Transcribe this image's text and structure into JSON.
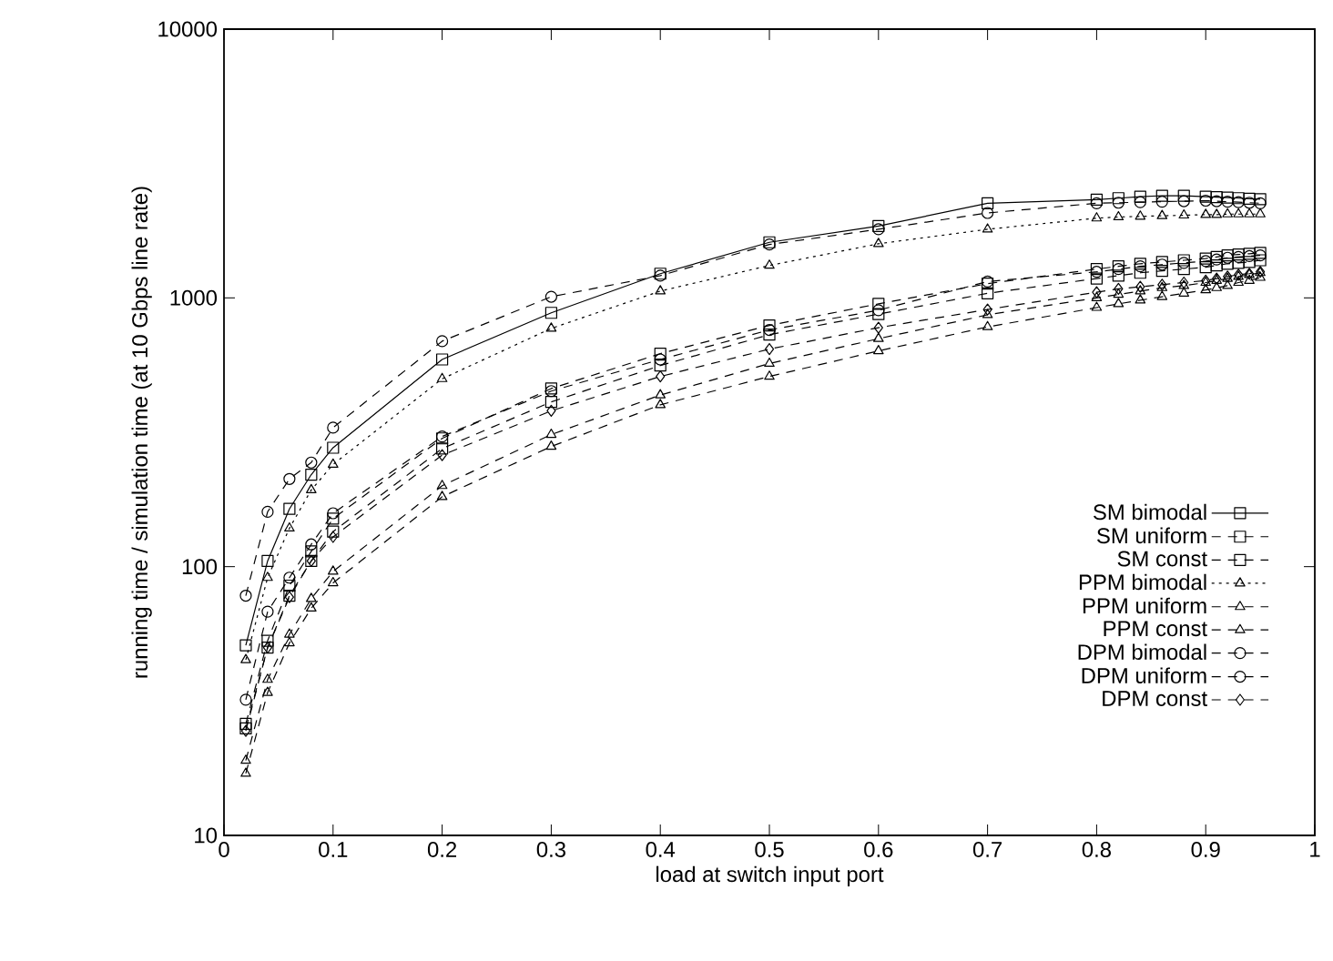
{
  "chart_data": {
    "type": "line",
    "xlabel": "load at switch input port",
    "ylabel": "running time / simulation time  (at 10 Gbps line rate)",
    "log": "y",
    "xlim": [
      0,
      1
    ],
    "ylim": [
      10,
      10000
    ],
    "xticks": [
      0,
      0.1,
      0.2,
      0.3,
      0.4,
      0.5,
      0.6,
      0.7,
      0.8,
      0.9,
      1
    ],
    "yticks": [
      10,
      100,
      1000,
      10000
    ],
    "grid": false,
    "legend": "bottom right",
    "x": [
      0.02,
      0.04,
      0.06,
      0.08,
      0.1,
      0.2,
      0.3,
      0.4,
      0.5,
      0.6,
      0.7,
      0.8,
      0.82,
      0.84,
      0.86,
      0.88,
      0.9,
      0.91,
      0.92,
      0.93,
      0.94,
      0.95
    ],
    "series": [
      {
        "name": "SM bimodal",
        "color": "#000000",
        "marker": "square",
        "line_style": "solid",
        "values": [
          51,
          105,
          164,
          220,
          277,
          590,
          880,
          1230,
          1610,
          1850,
          2250,
          2320,
          2350,
          2380,
          2400,
          2400,
          2380,
          2370,
          2360,
          2350,
          2340,
          2330
        ]
      },
      {
        "name": "SM uniform",
        "color": "#000000",
        "marker": "square",
        "line_style": "dashed",
        "values": [
          26,
          53,
          85,
          114,
          151,
          300,
          460,
          620,
          790,
          950,
          1130,
          1280,
          1310,
          1340,
          1360,
          1380,
          1400,
          1420,
          1440,
          1450,
          1460,
          1470
        ]
      },
      {
        "name": "SM const",
        "color": "#000000",
        "marker": "square",
        "line_style": "dashed",
        "values": [
          25,
          50,
          78,
          105,
          135,
          275,
          410,
          560,
          730,
          870,
          1040,
          1180,
          1210,
          1240,
          1260,
          1280,
          1300,
          1320,
          1340,
          1350,
          1360,
          1380
        ]
      },
      {
        "name": "PPM bimodal",
        "color": "#000000",
        "marker": "triangle",
        "line_style": "dotted",
        "values": [
          45,
          91,
          139,
          193,
          240,
          500,
          770,
          1060,
          1320,
          1590,
          1800,
          1980,
          2000,
          2010,
          2020,
          2030,
          2040,
          2040,
          2050,
          2050,
          2050,
          2050
        ]
      },
      {
        "name": "PPM uniform",
        "color": "#000000",
        "marker": "triangle",
        "line_style": "dashed",
        "values": [
          19,
          38,
          56,
          76,
          96,
          200,
          310,
          435,
          570,
          705,
          865,
          1000,
          1030,
          1060,
          1090,
          1110,
          1140,
          1160,
          1180,
          1200,
          1220,
          1240
        ]
      },
      {
        "name": "PPM const",
        "color": "#000000",
        "marker": "triangle",
        "line_style": "dashed",
        "values": [
          17,
          34,
          52,
          70,
          87,
          182,
          280,
          400,
          510,
          635,
          780,
          920,
          950,
          980,
          1010,
          1040,
          1070,
          1090,
          1110,
          1140,
          1160,
          1190
        ]
      },
      {
        "name": "DPM bimodal",
        "color": "#000000",
        "marker": "circle",
        "line_style": "dashed",
        "values": [
          78,
          160,
          212,
          244,
          329,
          690,
          1010,
          1210,
          1580,
          1800,
          2070,
          2250,
          2260,
          2270,
          2280,
          2290,
          2300,
          2290,
          2280,
          2270,
          2260,
          2250
        ]
      },
      {
        "name": "DPM uniform",
        "color": "#000000",
        "marker": "circle",
        "line_style": "dashed",
        "values": [
          32,
          68,
          91,
          121,
          158,
          305,
          450,
          590,
          760,
          900,
          1150,
          1250,
          1280,
          1310,
          1330,
          1350,
          1370,
          1390,
          1410,
          1420,
          1430,
          1440
        ]
      },
      {
        "name": "DPM const",
        "color": "#000000",
        "marker": "diamond",
        "line_style": "dashed",
        "values": [
          24.5,
          50,
          77,
          105,
          129,
          260,
          380,
          510,
          645,
          775,
          905,
          1050,
          1080,
          1100,
          1120,
          1140,
          1160,
          1180,
          1200,
          1220,
          1230,
          1250
        ]
      }
    ]
  }
}
